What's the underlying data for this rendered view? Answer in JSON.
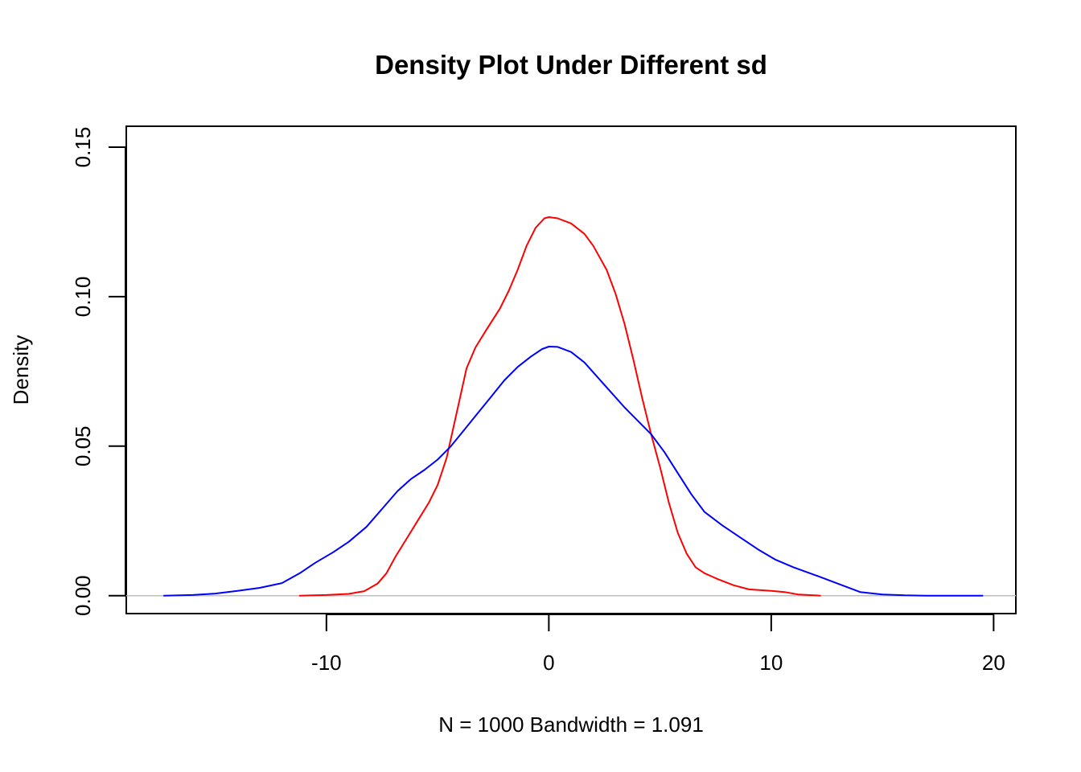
{
  "chart_data": {
    "type": "line",
    "title": "Density Plot Under Different sd",
    "xlabel": "N = 1000   Bandwidth = 1.091",
    "ylabel": "Density",
    "xlim": [
      -19,
      21
    ],
    "ylim": [
      -0.006,
      0.157
    ],
    "x_ticks": [
      -10,
      0,
      10,
      20
    ],
    "x_tick_labels": [
      "-10",
      "0",
      "10",
      "20"
    ],
    "y_ticks": [
      0.0,
      0.05,
      0.1,
      0.15
    ],
    "y_tick_labels": [
      "0.00",
      "0.05",
      "0.10",
      "0.15"
    ],
    "grid": false,
    "baseline": {
      "y": 0,
      "color": "#bebebe"
    },
    "series": [
      {
        "color": "#ff0000",
        "points": [
          [
            -11.2,
            0.0
          ],
          [
            -10.0,
            0.0002
          ],
          [
            -9.0,
            0.0006
          ],
          [
            -8.3,
            0.0015
          ],
          [
            -7.7,
            0.004
          ],
          [
            -7.3,
            0.0075
          ],
          [
            -6.9,
            0.013
          ],
          [
            -6.4,
            0.019
          ],
          [
            -5.9,
            0.025
          ],
          [
            -5.4,
            0.031
          ],
          [
            -5.0,
            0.037
          ],
          [
            -4.6,
            0.046
          ],
          [
            -4.3,
            0.056
          ],
          [
            -4.0,
            0.066
          ],
          [
            -3.7,
            0.076
          ],
          [
            -3.3,
            0.083
          ],
          [
            -2.8,
            0.089
          ],
          [
            -2.2,
            0.096
          ],
          [
            -1.8,
            0.102
          ],
          [
            -1.4,
            0.109
          ],
          [
            -1.0,
            0.117
          ],
          [
            -0.6,
            0.123
          ],
          [
            -0.2,
            0.1262
          ],
          [
            0.0,
            0.1266
          ],
          [
            0.4,
            0.1262
          ],
          [
            1.0,
            0.1245
          ],
          [
            1.6,
            0.121
          ],
          [
            2.0,
            0.117
          ],
          [
            2.6,
            0.109
          ],
          [
            3.0,
            0.101
          ],
          [
            3.4,
            0.091
          ],
          [
            3.8,
            0.079
          ],
          [
            4.2,
            0.066
          ],
          [
            4.6,
            0.054
          ],
          [
            5.0,
            0.043
          ],
          [
            5.4,
            0.031
          ],
          [
            5.8,
            0.021
          ],
          [
            6.2,
            0.014
          ],
          [
            6.6,
            0.0095
          ],
          [
            7.0,
            0.0075
          ],
          [
            7.6,
            0.0055
          ],
          [
            8.3,
            0.0035
          ],
          [
            9.0,
            0.0021
          ],
          [
            10.0,
            0.0016
          ],
          [
            10.6,
            0.0012
          ],
          [
            11.2,
            0.0004
          ],
          [
            12.2,
            0.0
          ]
        ]
      },
      {
        "color": "#0000ff",
        "points": [
          [
            -17.3,
            0.0
          ],
          [
            -16.0,
            0.0002
          ],
          [
            -15.0,
            0.0007
          ],
          [
            -14.0,
            0.0016
          ],
          [
            -13.0,
            0.0026
          ],
          [
            -12.0,
            0.0042
          ],
          [
            -11.2,
            0.0075
          ],
          [
            -10.5,
            0.011
          ],
          [
            -9.7,
            0.0145
          ],
          [
            -9.0,
            0.018
          ],
          [
            -8.2,
            0.023
          ],
          [
            -7.5,
            0.029
          ],
          [
            -6.8,
            0.035
          ],
          [
            -6.2,
            0.039
          ],
          [
            -5.6,
            0.042
          ],
          [
            -5.0,
            0.0455
          ],
          [
            -4.4,
            0.05
          ],
          [
            -3.8,
            0.0555
          ],
          [
            -3.2,
            0.061
          ],
          [
            -2.6,
            0.0665
          ],
          [
            -2.0,
            0.072
          ],
          [
            -1.4,
            0.0765
          ],
          [
            -0.8,
            0.08
          ],
          [
            -0.3,
            0.0825
          ],
          [
            0.0,
            0.0833
          ],
          [
            0.4,
            0.0832
          ],
          [
            1.0,
            0.0815
          ],
          [
            1.6,
            0.078
          ],
          [
            2.2,
            0.073
          ],
          [
            2.8,
            0.068
          ],
          [
            3.4,
            0.063
          ],
          [
            4.0,
            0.0585
          ],
          [
            4.6,
            0.054
          ],
          [
            5.2,
            0.048
          ],
          [
            5.8,
            0.041
          ],
          [
            6.4,
            0.034
          ],
          [
            7.0,
            0.028
          ],
          [
            7.8,
            0.0235
          ],
          [
            8.6,
            0.0195
          ],
          [
            9.4,
            0.0155
          ],
          [
            10.2,
            0.012
          ],
          [
            11.0,
            0.0095
          ],
          [
            12.0,
            0.0068
          ],
          [
            13.0,
            0.004
          ],
          [
            14.0,
            0.0012
          ],
          [
            15.0,
            0.0004
          ],
          [
            16.0,
            0.0001
          ],
          [
            17.0,
            0.0
          ],
          [
            19.5,
            0.0
          ]
        ]
      }
    ]
  }
}
